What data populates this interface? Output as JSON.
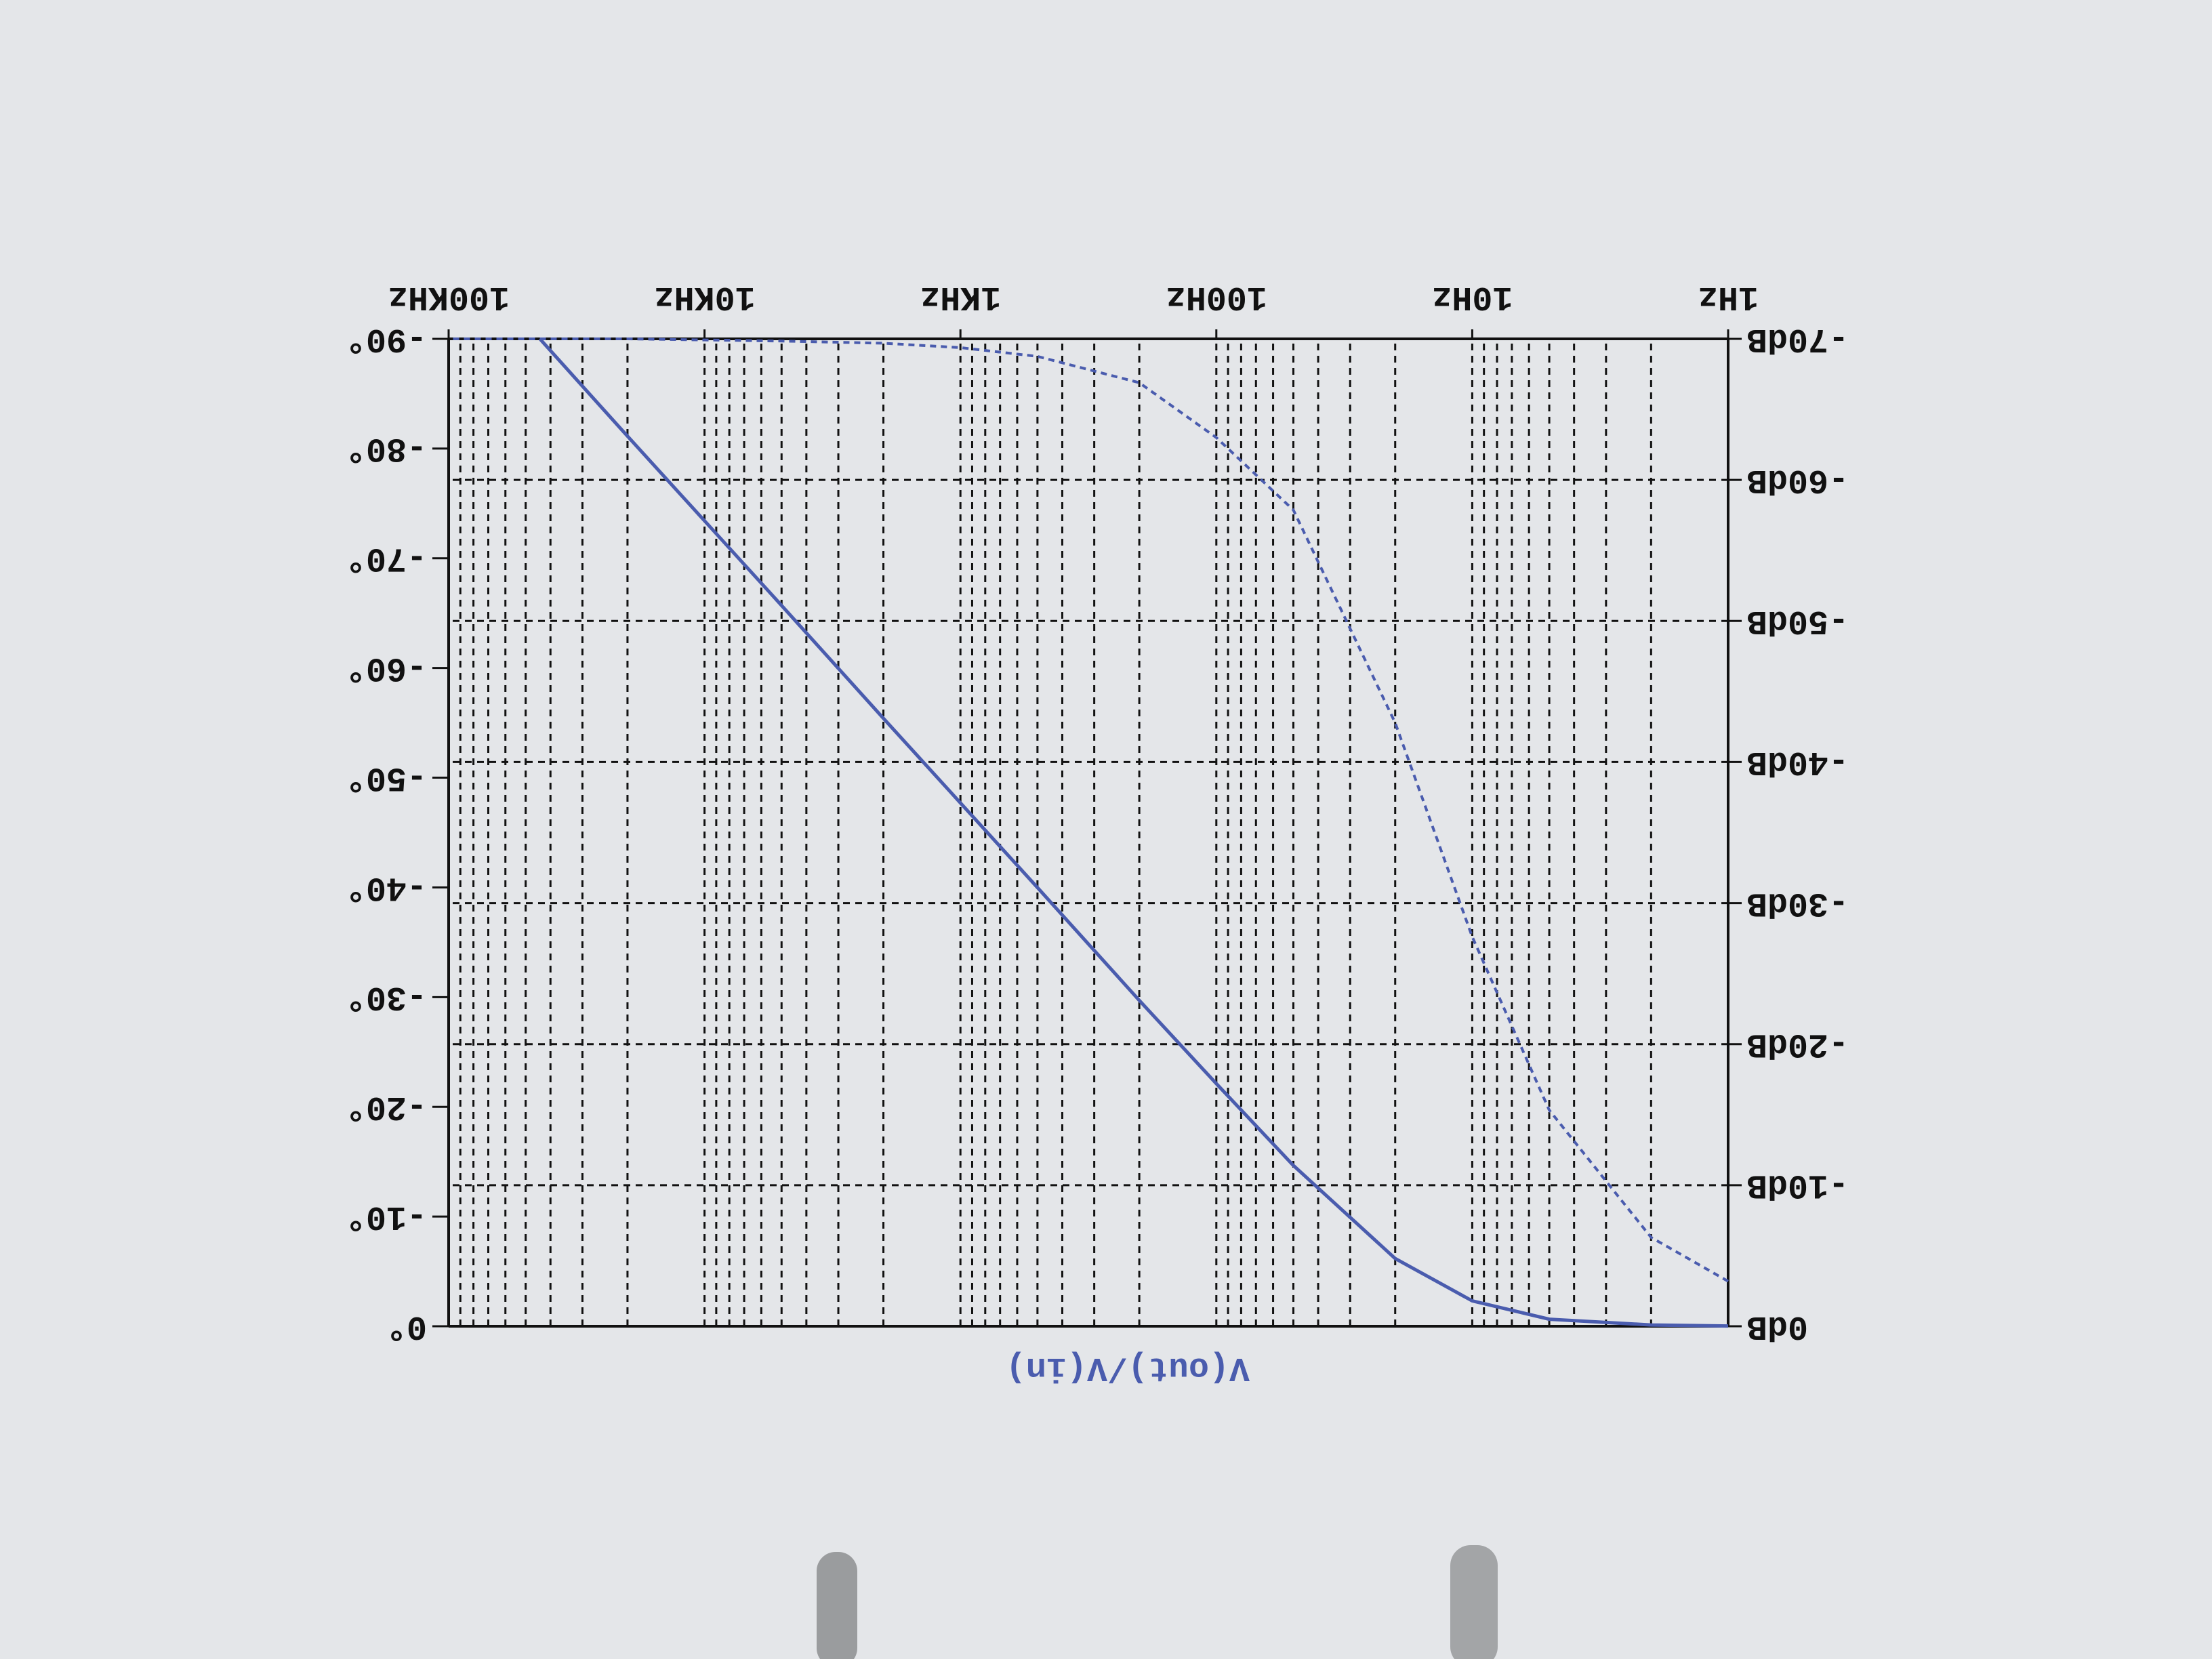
{
  "chart_data": {
    "type": "line",
    "x_scale": "log",
    "grid": true,
    "axis_label": "V(out)/V(in)",
    "x": [
      1,
      2,
      5,
      10,
      20,
      50,
      100,
      200,
      500,
      1000,
      2000,
      5000,
      10000,
      20000,
      44000,
      100000
    ],
    "xlim": [
      1,
      100000
    ],
    "xticks": [
      {
        "value": 1,
        "label": "1Hz"
      },
      {
        "value": 10,
        "label": "10Hz"
      },
      {
        "value": 100,
        "label": "100Hz"
      },
      {
        "value": 1000,
        "label": "1KHz"
      },
      {
        "value": 10000,
        "label": "10KHz"
      },
      {
        "value": 100000,
        "label": "100KHz"
      }
    ],
    "ylim": [
      -70,
      0
    ],
    "yticks": [
      {
        "value": 0,
        "label": "0dB"
      },
      {
        "value": -10,
        "label": "-10dB"
      },
      {
        "value": -20,
        "label": "-20dB"
      },
      {
        "value": -30,
        "label": "-30dB"
      },
      {
        "value": -40,
        "label": "-40dB"
      },
      {
        "value": -50,
        "label": "-50dB"
      },
      {
        "value": -60,
        "label": "-60dB"
      },
      {
        "value": -70,
        "label": "-70dB"
      }
    ],
    "y2lim": [
      -90,
      0
    ],
    "y2ticks": [
      {
        "value": 0,
        "label": "0°"
      },
      {
        "value": -10,
        "label": "-10°"
      },
      {
        "value": -20,
        "label": "-20°"
      },
      {
        "value": -30,
        "label": "-30°"
      },
      {
        "value": -40,
        "label": "-40°"
      },
      {
        "value": -50,
        "label": "-50°"
      },
      {
        "value": -60,
        "label": "-60°"
      },
      {
        "value": -70,
        "label": "-70°"
      },
      {
        "value": -80,
        "label": "-80°"
      },
      {
        "value": -90,
        "label": "-90°"
      }
    ],
    "series": [
      {
        "name": "V(out)/V(in)",
        "color": "#4a5cae",
        "values": [
          -0.02,
          -0.09,
          -0.5,
          -1.8,
          -4.8,
          -11.4,
          -17.2,
          -23.1,
          -31.1,
          -37.1,
          -43.1,
          -51.1,
          -57.1,
          -63.1,
          -70,
          null
        ]
      },
      {
        "color": "#4a5cae",
        "axis": "y2",
        "dashed": true,
        "values": [
          -4.1,
          -8.1,
          -19.7,
          -35.5,
          -55.0,
          -74.4,
          -81.0,
          -86.0,
          -88.4,
          -89.2,
          -89.6,
          -89.8,
          -89.9,
          -90,
          -90,
          -90
        ]
      }
    ]
  }
}
